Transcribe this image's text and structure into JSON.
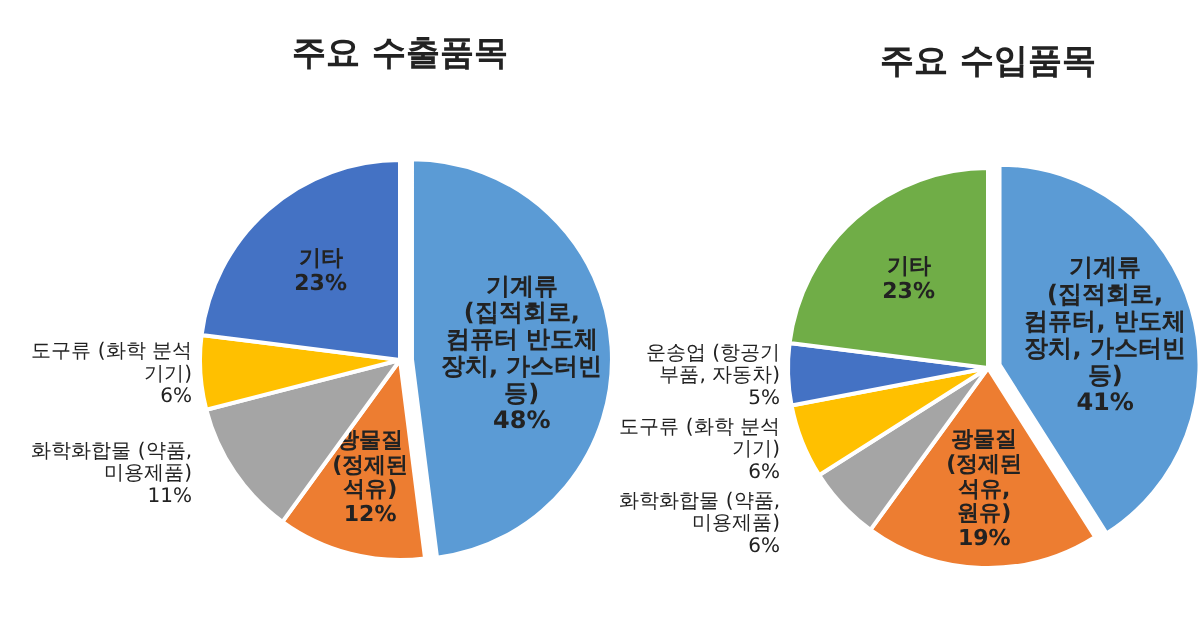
{
  "chart_data": [
    {
      "type": "pie",
      "title": "주요 수출품목",
      "categories": [
        "기계류 (집적회로, 컴퓨터 반도체 장치, 가스터빈 등)",
        "광물질 (정제된 석유)",
        "화학화합물 (약품, 미용제품)",
        "도구류 (화학 분석 기기)",
        "기타"
      ],
      "values": [
        48,
        12,
        11,
        6,
        23
      ],
      "value_labels": [
        "48%",
        "12%",
        "11%",
        "6%",
        "23%"
      ],
      "colors": [
        "#5b9bd5",
        "#ed7d31",
        "#a5a5a5",
        "#ffc000",
        "#4472c4"
      ],
      "legend": false
    },
    {
      "type": "pie",
      "title": "주요 수입품목",
      "categories": [
        "기계류 (집적회로, 컴퓨터, 반도체 장치, 가스터빈 등)",
        "광물질 (정제된 석유, 원유)",
        "화학화합물 (약품, 미용제품)",
        "도구류 (화학 분석 기기)",
        "운송업 (항공기 부품, 자동차)",
        "기타"
      ],
      "values": [
        41,
        19,
        6,
        6,
        5,
        23
      ],
      "value_labels": [
        "41%",
        "19%",
        "6%",
        "6%",
        "5%",
        "23%"
      ],
      "colors": [
        "#5b9bd5",
        "#ed7d31",
        "#a5a5a5",
        "#ffc000",
        "#4472c4",
        "#70ad47"
      ],
      "legend": false
    }
  ]
}
